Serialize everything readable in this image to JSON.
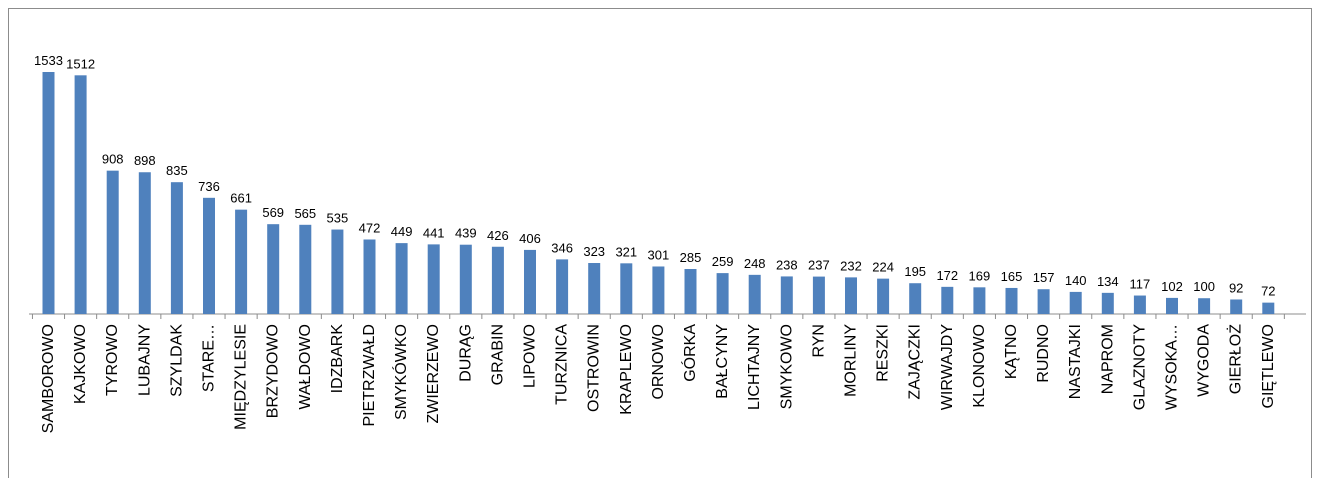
{
  "chart_data": {
    "type": "bar",
    "title": "",
    "xlabel": "",
    "ylabel": "",
    "ylim": [
      0,
      1600
    ],
    "grid": false,
    "legend": "none",
    "bar_color": "#4f81bd",
    "categories": [
      "SAMBOROWO",
      "KAJKOWO",
      "TYROWO",
      "LUBAJNY",
      "SZYLDAK",
      "STARE…",
      "MIĘDZYLESIE",
      "BRZYDOWO",
      "WAŁDOWO",
      "IDZBARK",
      "PIETRZWAŁD",
      "SMYKÓWKO",
      "ZWIERZEWO",
      "DURĄG",
      "GRABIN",
      "LIPOWO",
      "TURZNICA",
      "OSTROWIN",
      "KRAPLEWO",
      "ORNOWO",
      "GÓRKA",
      "BAŁCYNY",
      "LICHTAJNY",
      "SMYKOWO",
      "RYN",
      "MORLINY",
      "RESZKI",
      "ZAJĄCZKI",
      "WIRWAJDY",
      "KLONOWO",
      "KĄTNO",
      "RUDNO",
      "NASTAJKI",
      "NAPROM",
      "GLAZNOTY",
      "WYSOKA…",
      "WYGODA",
      "GIERŁOŻ",
      "GIĘTLEWO"
    ],
    "values": [
      1533,
      1512,
      908,
      898,
      835,
      736,
      661,
      569,
      565,
      535,
      472,
      449,
      441,
      439,
      426,
      406,
      346,
      323,
      321,
      301,
      285,
      259,
      248,
      238,
      237,
      232,
      224,
      195,
      172,
      169,
      165,
      157,
      140,
      134,
      117,
      102,
      100,
      92,
      72
    ]
  }
}
